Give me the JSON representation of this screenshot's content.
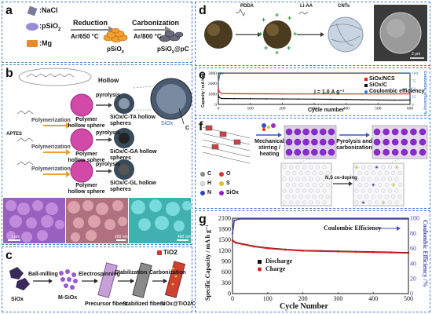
{
  "panels": {
    "a": "a",
    "b": "b",
    "c": "c",
    "d": "d",
    "e": "e",
    "f": "f",
    "g": "g"
  },
  "a": {
    "legend": [
      ":NaCl",
      ":pSiO",
      ":Mg"
    ],
    "legend_sub": [
      "",
      "2",
      ""
    ],
    "step1_top": "Reduction",
    "step1_bottom": "Ar/650 °C",
    "step2_top": "Carbonization",
    "step2_bottom": "Ar/800 °C",
    "product1": "pSiO",
    "product1_sub": "x",
    "product2": "pSiO",
    "product2_sub": "x",
    "product2_suffix": "@pC"
  },
  "b": {
    "hollow": "Hollow",
    "pyrolysis": "pyrolysis",
    "polymerization": "Polymerization",
    "aptes": "APTES",
    "sphere_label": "Polymer hollow sphere",
    "results": [
      "SiOx/C-TA hollow spheres",
      "SiOx/C-GA hollow spheres",
      "SiOx/C-GL hollow spheres"
    ],
    "siox": "SiOx",
    "c_label": "C",
    "scales": [
      "1 μm",
      "200 nm",
      "400 nm"
    ]
  },
  "c": {
    "tio2": "TiO2",
    "steps": [
      "Ball-milling",
      "Electrospinning",
      "Stabilization",
      "Carbonization"
    ],
    "items": [
      "SiOx",
      "M-SiOx",
      "Precursor fibers",
      "Stabilized fibers",
      "SiOx@TiO2/C"
    ]
  },
  "d": {
    "pdda": "PDDA",
    "liaa": "Li-AA",
    "cnts": "CNTs",
    "scale": "2 μm"
  },
  "f": {
    "step1": "Mechanical stirring / heating",
    "step2": "Pyrolysis and carbonization",
    "doping": "N,S co-doping",
    "legend": [
      "C",
      "O",
      "H",
      "S",
      "N",
      "SiOx"
    ],
    "legend_colors": [
      "#888888",
      "#e03030",
      "#dddddd",
      "#e0c020",
      "#3040c0",
      "#9020c0"
    ]
  },
  "chart_data": [
    {
      "id": "e",
      "type": "line",
      "xlabel": "Cycle number",
      "ylabel": "Capacity / mA h g⁻¹",
      "y2label": "Coulombic efficiency %",
      "annotation": "i = 1.0 A g⁻¹",
      "xlim": [
        0,
        600
      ],
      "ylim": [
        0,
        3000
      ],
      "y2lim": [
        0,
        100
      ],
      "xticks": [
        0,
        100,
        200,
        300,
        400,
        500,
        600
      ],
      "yticks": [
        0,
        1000,
        2000,
        3000
      ],
      "y2ticks": [
        0,
        25,
        50,
        75,
        100
      ],
      "series": [
        {
          "name": "SiOx/NCS",
          "color": "#e02020",
          "x": [
            0,
            3,
            10,
            50,
            100,
            150,
            200,
            250,
            300,
            350,
            400,
            450,
            500,
            550,
            600
          ],
          "y": [
            1500,
            1200,
            1050,
            1020,
            1010,
            1010,
            1000,
            1000,
            1000,
            1000,
            1000,
            1000,
            1000,
            1000,
            1000
          ]
        },
        {
          "name": "SiOx/C",
          "color": "#111111",
          "x": [
            0,
            3,
            10,
            50,
            100,
            150,
            200,
            250,
            300,
            350,
            400,
            450,
            500,
            550,
            600
          ],
          "y": [
            900,
            650,
            560,
            550,
            540,
            530,
            520,
            510,
            500,
            490,
            470,
            450,
            420,
            410,
            420
          ]
        },
        {
          "name": "Coulombic efficiency",
          "color": "#3a7ad0",
          "axis": "y2",
          "x": [
            0,
            5,
            20,
            600
          ],
          "y": [
            70,
            97,
            99,
            99
          ]
        }
      ]
    },
    {
      "id": "g",
      "type": "scatter",
      "xlabel": "Cycle Number",
      "ylabel": "Specific Capacity / mA h g⁻¹",
      "y2label": "Coulombic Efficiency /%",
      "xlim": [
        0,
        500
      ],
      "ylim": [
        0,
        2100
      ],
      "y2lim": [
        0,
        100
      ],
      "xticks": [
        0,
        100,
        200,
        300,
        400,
        500
      ],
      "yticks": [
        0,
        300,
        600,
        900,
        1200,
        1500,
        1800,
        2100
      ],
      "y2ticks": [
        0,
        20,
        40,
        60,
        80,
        100
      ],
      "series": [
        {
          "name": "Discharge",
          "color": "#111111",
          "x": [
            0,
            10,
            30,
            60,
            100,
            150,
            200,
            250,
            300,
            350,
            400,
            450,
            500
          ],
          "y": [
            1480,
            1420,
            1380,
            1320,
            1270,
            1230,
            1200,
            1190,
            1180,
            1170,
            1160,
            1150,
            1140
          ]
        },
        {
          "name": "Charge",
          "color": "#e02020",
          "x": [
            0,
            10,
            30,
            60,
            100,
            150,
            200,
            250,
            300,
            350,
            400,
            450,
            500
          ],
          "y": [
            1470,
            1410,
            1370,
            1310,
            1260,
            1220,
            1190,
            1180,
            1170,
            1160,
            1150,
            1140,
            1130
          ]
        },
        {
          "name": "Coulombic Efficiency",
          "color": "#4a4ab0",
          "axis": "y2",
          "x": [
            0,
            5,
            20,
            500
          ],
          "y": [
            80,
            97,
            99,
            99
          ]
        }
      ]
    }
  ]
}
